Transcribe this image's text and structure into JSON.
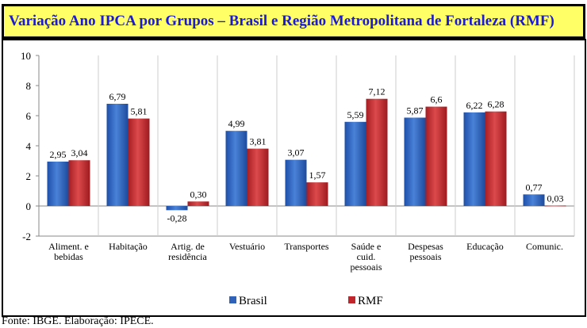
{
  "title": "Variação Ano IPCA por Grupos – Brasil e Região Metropolitana de Fortaleza (RMF)",
  "footer": "Fonte: IBGE. Elaboração: IPECE.",
  "colors": {
    "brasil": "#2f62b8",
    "rmf": "#c0262b",
    "title_bg": "#ffff66",
    "title_text": "#1a1ad6"
  },
  "chart_data": {
    "type": "bar",
    "title": "Variação Ano IPCA por Grupos – Brasil e Região Metropolitana de Fortaleza (RMF)",
    "categories": [
      [
        "Aliment. e",
        "bebidas"
      ],
      [
        "Habitação"
      ],
      [
        "Artig. de",
        "residência"
      ],
      [
        "Vestuário"
      ],
      [
        "Transportes"
      ],
      [
        "Saúde e",
        "cuid.",
        "pessoais"
      ],
      [
        "Despesas",
        "pessoais"
      ],
      [
        "Educação"
      ],
      [
        "Comunic."
      ]
    ],
    "series": [
      {
        "name": "Brasil",
        "values": [
          2.95,
          6.79,
          -0.28,
          4.99,
          3.07,
          5.59,
          5.87,
          6.22,
          0.77
        ],
        "labels": [
          "2,95",
          "6,79",
          "-0,28",
          "4,99",
          "3,07",
          "5,59",
          "5,87",
          "6,22",
          "0,77"
        ]
      },
      {
        "name": "RMF",
        "values": [
          3.04,
          5.81,
          0.3,
          3.81,
          1.57,
          7.12,
          6.6,
          6.28,
          0.03
        ],
        "labels": [
          "3,04",
          "5,81",
          "0,30",
          "3,81",
          "1,57",
          "7,12",
          "6,6",
          "6,28",
          "0,03"
        ]
      }
    ],
    "ylim": [
      -2,
      10
    ],
    "yticks": [
      10,
      8,
      6,
      4,
      2,
      0,
      -2
    ],
    "xlabel": "",
    "ylabel": "",
    "grid": "vertical category separators",
    "legend": "bottom"
  }
}
